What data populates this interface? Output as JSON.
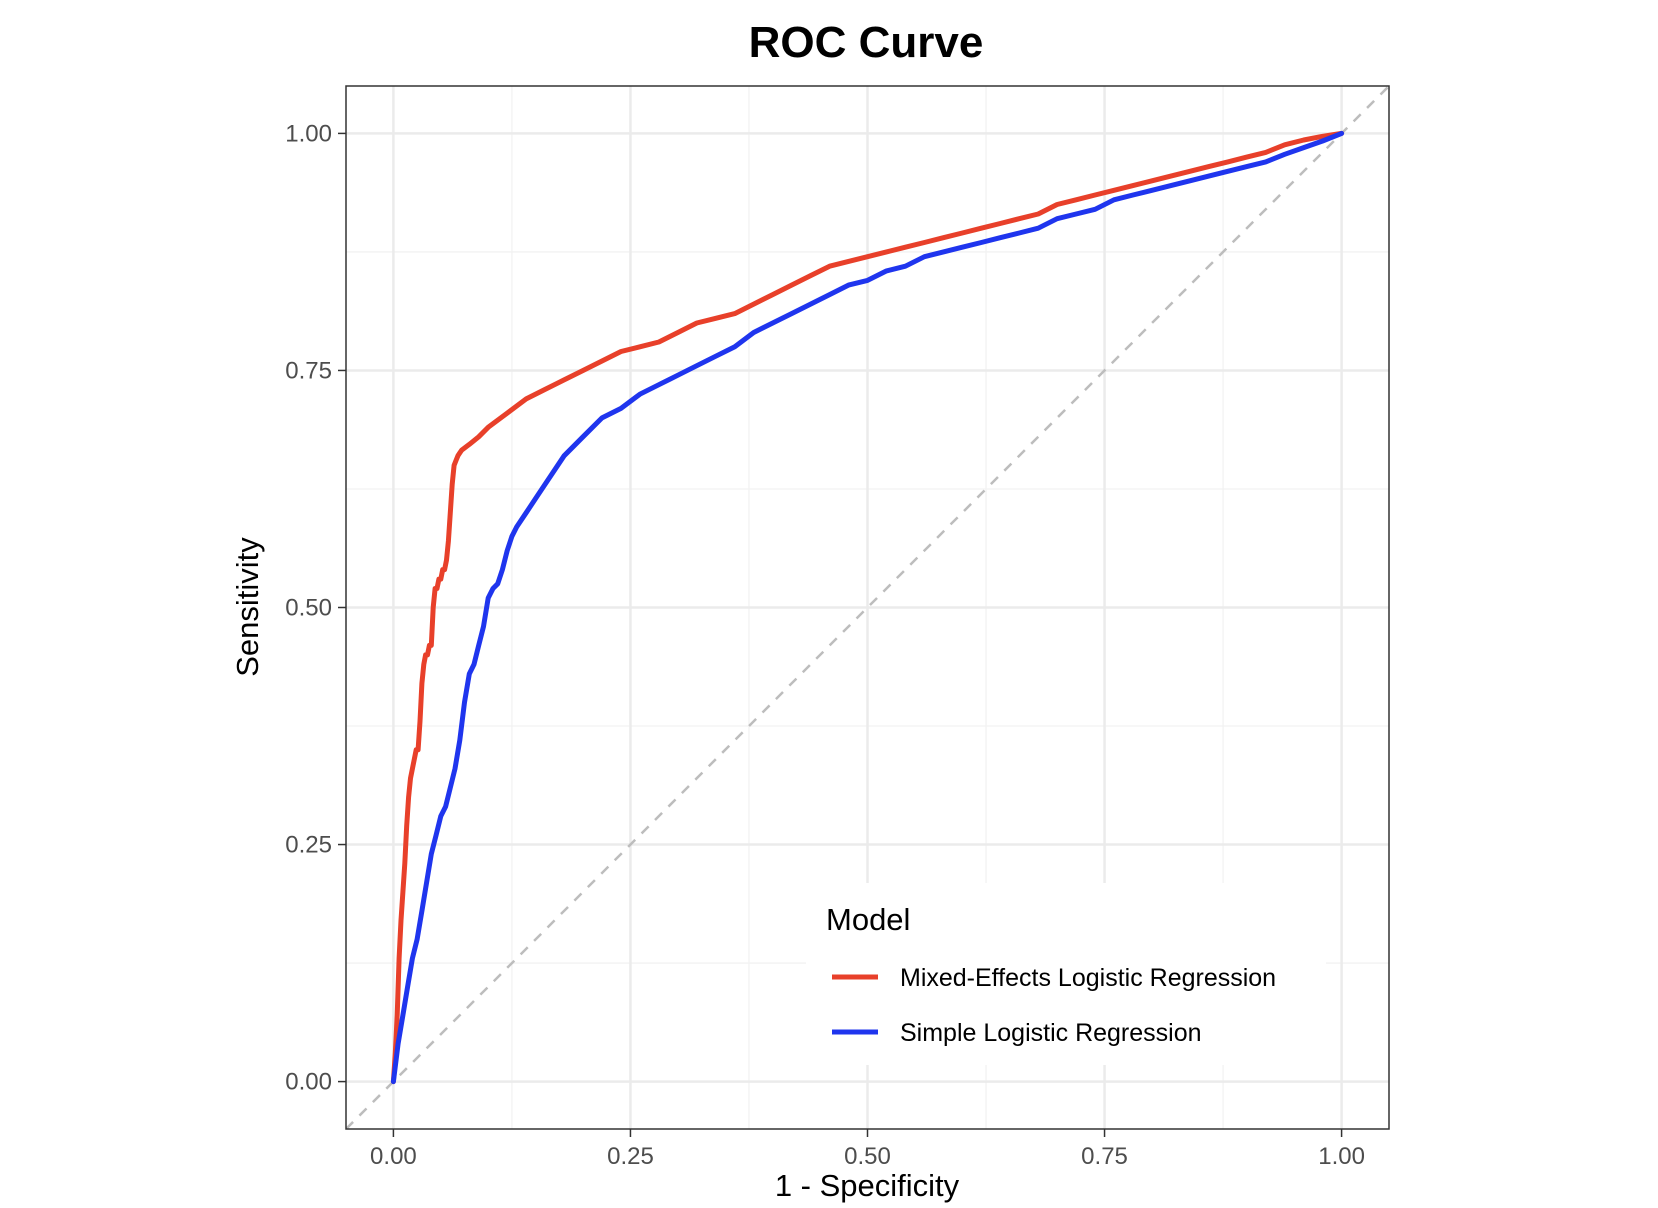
{
  "chart_data": {
    "type": "line",
    "title": "ROC Curve",
    "xlabel": "1 - Specificity",
    "ylabel": "Sensitivity",
    "xlim": [
      -0.05,
      1.05
    ],
    "ylim": [
      -0.05,
      1.05
    ],
    "x_ticks": [
      "0.00",
      "0.25",
      "0.50",
      "0.75",
      "1.00"
    ],
    "y_ticks": [
      "0.00",
      "0.25",
      "0.50",
      "0.75",
      "1.00"
    ],
    "x_tick_values": [
      0,
      0.25,
      0.5,
      0.75,
      1
    ],
    "y_tick_values": [
      0,
      0.25,
      0.5,
      0.75,
      1
    ],
    "grid": true,
    "reference_line": {
      "x": [
        0,
        1
      ],
      "y": [
        0,
        1
      ],
      "color": "#bdbdbd",
      "style": "dashed"
    },
    "legend": {
      "title": "Model",
      "position": "bottom-right"
    },
    "series": [
      {
        "name": "Mixed-Effects Logistic Regression",
        "color": "#e8402a",
        "x": [
          0,
          0.002,
          0.004,
          0.006,
          0.008,
          0.01,
          0.012,
          0.014,
          0.016,
          0.018,
          0.02,
          0.022,
          0.024,
          0.026,
          0.028,
          0.03,
          0.032,
          0.034,
          0.036,
          0.038,
          0.04,
          0.042,
          0.044,
          0.046,
          0.048,
          0.05,
          0.052,
          0.054,
          0.056,
          0.058,
          0.06,
          0.062,
          0.064,
          0.066,
          0.068,
          0.07,
          0.072,
          0.08,
          0.09,
          0.1,
          0.12,
          0.14,
          0.16,
          0.18,
          0.2,
          0.22,
          0.24,
          0.26,
          0.28,
          0.3,
          0.32,
          0.34,
          0.36,
          0.38,
          0.4,
          0.42,
          0.44,
          0.46,
          0.48,
          0.5,
          0.52,
          0.54,
          0.56,
          0.58,
          0.6,
          0.62,
          0.64,
          0.66,
          0.68,
          0.7,
          0.72,
          0.74,
          0.76,
          0.78,
          0.8,
          0.82,
          0.84,
          0.86,
          0.88,
          0.9,
          0.92,
          0.94,
          0.96,
          0.98,
          1.0
        ],
        "y": [
          0.0,
          0.03,
          0.07,
          0.13,
          0.17,
          0.2,
          0.23,
          0.27,
          0.3,
          0.32,
          0.33,
          0.34,
          0.35,
          0.35,
          0.38,
          0.42,
          0.44,
          0.45,
          0.45,
          0.46,
          0.46,
          0.5,
          0.52,
          0.52,
          0.53,
          0.53,
          0.54,
          0.54,
          0.55,
          0.57,
          0.6,
          0.63,
          0.65,
          0.655,
          0.66,
          0.663,
          0.666,
          0.672,
          0.68,
          0.69,
          0.705,
          0.72,
          0.73,
          0.74,
          0.75,
          0.76,
          0.77,
          0.775,
          0.78,
          0.79,
          0.8,
          0.805,
          0.81,
          0.82,
          0.83,
          0.84,
          0.85,
          0.86,
          0.865,
          0.87,
          0.875,
          0.88,
          0.885,
          0.89,
          0.895,
          0.9,
          0.905,
          0.91,
          0.915,
          0.925,
          0.93,
          0.935,
          0.94,
          0.945,
          0.95,
          0.955,
          0.96,
          0.965,
          0.97,
          0.975,
          0.98,
          0.988,
          0.993,
          0.997,
          1.0
        ]
      },
      {
        "name": "Simple Logistic Regression",
        "color": "#1f35ee",
        "x": [
          0,
          0.005,
          0.01,
          0.015,
          0.02,
          0.025,
          0.03,
          0.035,
          0.04,
          0.045,
          0.05,
          0.055,
          0.06,
          0.065,
          0.07,
          0.075,
          0.08,
          0.085,
          0.09,
          0.095,
          0.1,
          0.105,
          0.11,
          0.115,
          0.12,
          0.125,
          0.13,
          0.14,
          0.15,
          0.16,
          0.18,
          0.2,
          0.22,
          0.24,
          0.26,
          0.28,
          0.3,
          0.32,
          0.34,
          0.36,
          0.38,
          0.4,
          0.42,
          0.44,
          0.46,
          0.48,
          0.5,
          0.52,
          0.54,
          0.56,
          0.58,
          0.6,
          0.62,
          0.64,
          0.66,
          0.68,
          0.7,
          0.72,
          0.74,
          0.76,
          0.78,
          0.8,
          0.82,
          0.84,
          0.86,
          0.88,
          0.9,
          0.92,
          0.94,
          0.96,
          0.98,
          1.0
        ],
        "y": [
          0.0,
          0.04,
          0.07,
          0.1,
          0.13,
          0.15,
          0.18,
          0.21,
          0.24,
          0.26,
          0.28,
          0.29,
          0.31,
          0.33,
          0.36,
          0.4,
          0.43,
          0.44,
          0.46,
          0.48,
          0.51,
          0.52,
          0.525,
          0.54,
          0.56,
          0.575,
          0.585,
          0.6,
          0.615,
          0.63,
          0.66,
          0.68,
          0.7,
          0.71,
          0.725,
          0.735,
          0.745,
          0.755,
          0.765,
          0.775,
          0.79,
          0.8,
          0.81,
          0.82,
          0.83,
          0.84,
          0.845,
          0.855,
          0.86,
          0.87,
          0.875,
          0.88,
          0.885,
          0.89,
          0.895,
          0.9,
          0.91,
          0.915,
          0.92,
          0.93,
          0.935,
          0.94,
          0.945,
          0.95,
          0.955,
          0.96,
          0.965,
          0.97,
          0.978,
          0.985,
          0.992,
          1.0
        ]
      }
    ]
  }
}
